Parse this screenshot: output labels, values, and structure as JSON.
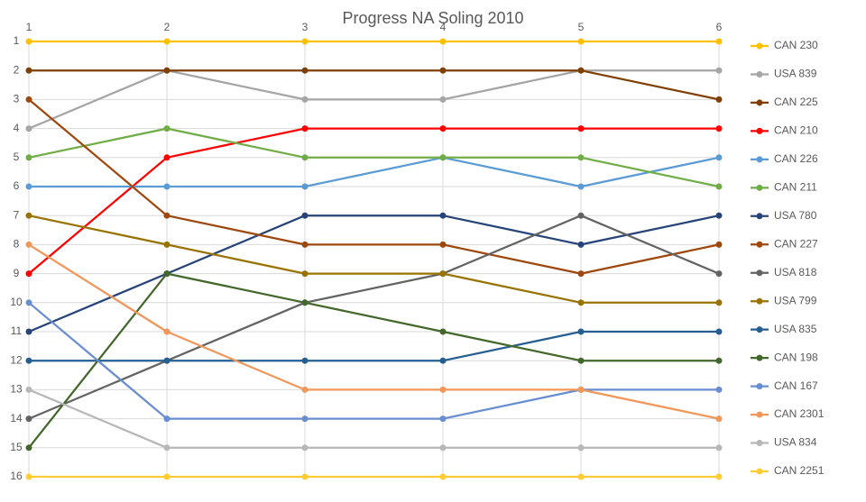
{
  "chart_data": {
    "type": "line",
    "title": "Progress NA Soling 2010",
    "x": [
      1,
      2,
      3,
      4,
      5,
      6
    ],
    "xlim": [
      1,
      6
    ],
    "xticks": [
      1,
      2,
      3,
      4,
      5,
      6
    ],
    "ylim": [
      16,
      1
    ],
    "yticks": [
      1,
      2,
      3,
      4,
      5,
      6,
      7,
      8,
      9,
      10,
      11,
      12,
      13,
      14,
      15,
      16
    ],
    "grid": true,
    "legend": "right",
    "series": [
      {
        "name": "CAN 230",
        "color": "#ffc000",
        "values": [
          1,
          1,
          1,
          1,
          1,
          1
        ]
      },
      {
        "name": "USA 839",
        "color": "#a5a5a5",
        "values": [
          4,
          2,
          3,
          3,
          2,
          2
        ]
      },
      {
        "name": "CAN 225",
        "color": "#7f3f00",
        "values": [
          2,
          2,
          2,
          2,
          2,
          3
        ]
      },
      {
        "name": "CAN 210",
        "color": "#ff0000",
        "values": [
          9,
          5,
          4,
          4,
          4,
          4
        ]
      },
      {
        "name": "CAN 226",
        "color": "#5b9bd5",
        "values": [
          6,
          6,
          6,
          5,
          6,
          5
        ]
      },
      {
        "name": "CAN 211",
        "color": "#70ad47",
        "values": [
          5,
          4,
          5,
          5,
          5,
          6
        ]
      },
      {
        "name": "USA 780",
        "color": "#264478",
        "values": [
          11,
          9,
          7,
          7,
          8,
          7
        ]
      },
      {
        "name": "CAN 227",
        "color": "#9e480e",
        "values": [
          3,
          7,
          8,
          8,
          9,
          8
        ]
      },
      {
        "name": "USA 818",
        "color": "#636363",
        "values": [
          14,
          12,
          10,
          9,
          7,
          9
        ]
      },
      {
        "name": "USA 799",
        "color": "#997300",
        "values": [
          7,
          8,
          9,
          9,
          10,
          10
        ]
      },
      {
        "name": "USA 835",
        "color": "#255e91",
        "values": [
          12,
          12,
          12,
          12,
          11,
          11
        ]
      },
      {
        "name": "CAN 198",
        "color": "#43682b",
        "values": [
          15,
          9,
          10,
          11,
          12,
          12
        ]
      },
      {
        "name": "CAN 167",
        "color": "#698ed0",
        "values": [
          10,
          14,
          14,
          14,
          13,
          13
        ]
      },
      {
        "name": "CAN 2301",
        "color": "#f1975a",
        "values": [
          8,
          11,
          13,
          13,
          13,
          14
        ]
      },
      {
        "name": "USA 834",
        "color": "#b7b7b7",
        "values": [
          13,
          15,
          15,
          15,
          15,
          15
        ]
      },
      {
        "name": "CAN 2251",
        "color": "#ffcd33",
        "values": [
          16,
          16,
          16,
          16,
          16,
          16
        ]
      }
    ]
  }
}
